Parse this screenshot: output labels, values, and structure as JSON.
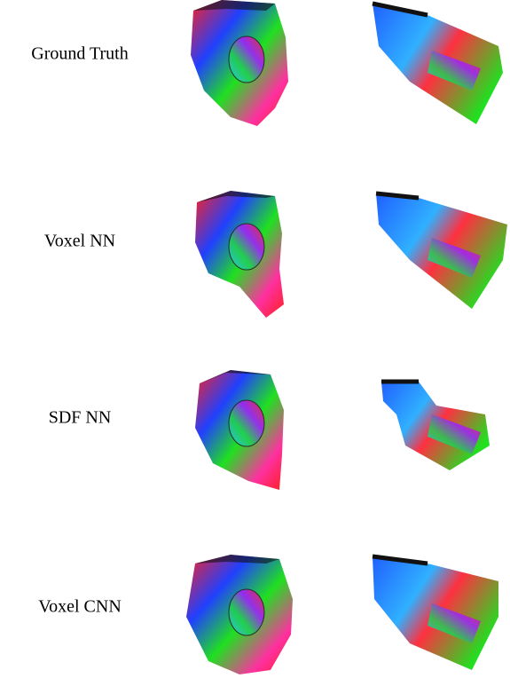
{
  "rows": [
    {
      "label": "Ground Truth"
    },
    {
      "label": "Voxel NN"
    },
    {
      "label": "SDF NN"
    },
    {
      "label": "Voxel CNN"
    }
  ]
}
